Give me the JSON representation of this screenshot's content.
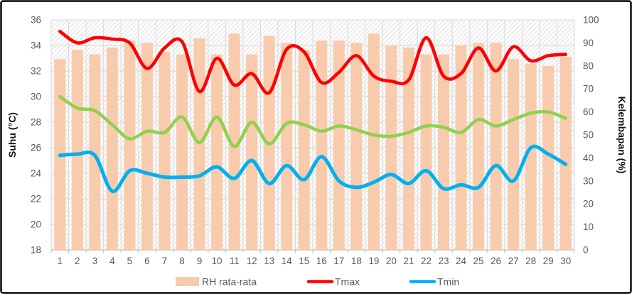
{
  "chart_data": {
    "type": "bar",
    "subtype": "combo-bar-line",
    "x_categories": [
      1,
      2,
      3,
      4,
      5,
      6,
      7,
      8,
      9,
      10,
      11,
      12,
      13,
      14,
      15,
      16,
      17,
      18,
      19,
      20,
      21,
      22,
      23,
      24,
      25,
      26,
      27,
      28,
      29,
      30
    ],
    "series": [
      {
        "name": "RH rata-rata",
        "type": "bar",
        "axis": "right",
        "color": "#F8CBAD",
        "values": [
          83,
          87,
          85,
          88,
          91,
          90,
          86,
          85,
          92,
          85,
          94,
          85,
          93,
          90,
          87,
          91,
          91,
          90,
          94,
          89,
          88,
          85,
          85,
          89,
          90,
          90,
          83,
          81,
          80,
          84
        ]
      },
      {
        "name": "Tmax",
        "type": "line",
        "axis": "left",
        "color": "#FE0000",
        "values": [
          35.1,
          34.2,
          34.6,
          34.5,
          34.2,
          32.2,
          33.8,
          34.3,
          30.4,
          33.0,
          30.9,
          31.8,
          30.3,
          33.7,
          33.5,
          31.1,
          31.9,
          33.2,
          31.6,
          31.2,
          31.3,
          34.6,
          31.6,
          31.8,
          33.8,
          32.0,
          33.9,
          32.8,
          33.2,
          33.3
        ]
      },
      {
        "name": "",
        "note": "green line shown in plot but absent from legend",
        "type": "line",
        "axis": "left",
        "color": "#92D050",
        "values": [
          30.0,
          29.1,
          28.9,
          27.8,
          26.7,
          27.3,
          27.2,
          28.4,
          26.4,
          28.4,
          26.1,
          28.0,
          26.3,
          27.9,
          27.8,
          27.3,
          27.7,
          27.4,
          27.0,
          26.9,
          27.2,
          27.7,
          27.6,
          27.2,
          28.2,
          27.7,
          28.2,
          28.7,
          28.8,
          28.3
        ]
      },
      {
        "name": "Tmin",
        "type": "line",
        "axis": "left",
        "color": "#00B0F0",
        "values": [
          25.4,
          25.5,
          25.4,
          22.6,
          24.2,
          24.0,
          23.7,
          23.7,
          23.8,
          24.5,
          23.6,
          25.0,
          23.2,
          24.6,
          23.5,
          25.3,
          23.4,
          22.9,
          23.3,
          23.9,
          23.2,
          24.2,
          22.8,
          23.1,
          22.9,
          24.6,
          23.4,
          26.0,
          25.5,
          24.7
        ]
      }
    ],
    "left_axis": {
      "title": "Suhu (°C)",
      "min": 18,
      "max": 36,
      "step": 2,
      "tick_labels": [
        "18",
        "20",
        "22",
        "24",
        "26",
        "28",
        "30",
        "32",
        "34",
        "36"
      ]
    },
    "right_axis": {
      "title": "Kelembapan (%)",
      "min": 0,
      "max": 100,
      "step": 10,
      "tick_labels": [
        "0",
        "10",
        "20",
        "30",
        "40",
        "50",
        "60",
        "70",
        "80",
        "90",
        "100"
      ]
    },
    "legend": {
      "position": "bottom",
      "entries": [
        {
          "label": "RH rata-rata",
          "swatch": "bar",
          "color": "#F8CBAD"
        },
        {
          "label": "Tmax",
          "swatch": "line",
          "color": "#FE0000"
        },
        {
          "label": "Tmin",
          "swatch": "line",
          "color": "#00B0F0"
        }
      ]
    },
    "grid": {
      "horizontal": true,
      "vertical": true
    },
    "plot_background": "diagonal-hatch",
    "title": ""
  },
  "styles": {
    "gridline_color": "#D9D9D9",
    "axis_line_color": "#BFBFBF",
    "hatch_color": "#DCDCDC",
    "border_color": "#000000",
    "tick_text_color": "#595959"
  }
}
